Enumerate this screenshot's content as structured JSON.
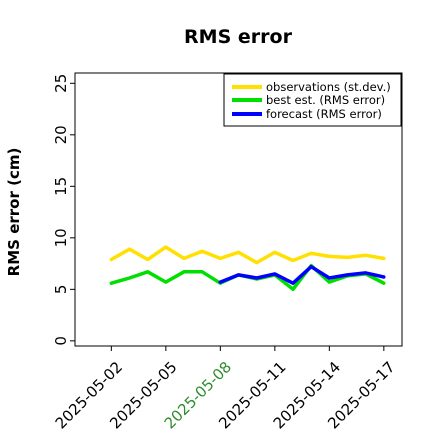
{
  "chart_data": {
    "type": "line",
    "title": "RMS error",
    "ylabel": "RMS error (cm)",
    "xlabel": "",
    "ylim": [
      -0.5,
      26
    ],
    "yticks": [
      0,
      5,
      10,
      15,
      20,
      25
    ],
    "xlim": [
      "2025-04-30",
      "2025-05-18"
    ],
    "xticks": [
      {
        "label": "2025-05-02",
        "x": "2025-05-02",
        "color": "#000000"
      },
      {
        "label": "2025-05-05",
        "x": "2025-05-05",
        "color": "#000000"
      },
      {
        "label": "2025-05-08",
        "x": "2025-05-08",
        "color": "#2e8b2e"
      },
      {
        "label": "2025-05-11",
        "x": "2025-05-11",
        "color": "#000000"
      },
      {
        "label": "2025-05-14",
        "x": "2025-05-14",
        "color": "#000000"
      },
      {
        "label": "2025-05-17",
        "x": "2025-05-17",
        "color": "#000000"
      }
    ],
    "x": [
      "2025-05-02",
      "2025-05-03",
      "2025-05-04",
      "2025-05-05",
      "2025-05-06",
      "2025-05-07",
      "2025-05-08",
      "2025-05-09",
      "2025-05-10",
      "2025-05-11",
      "2025-05-12",
      "2025-05-13",
      "2025-05-14",
      "2025-05-15",
      "2025-05-16",
      "2025-05-17"
    ],
    "series": [
      {
        "name": "observations (st.dev.)",
        "color": "#ffe000",
        "values": [
          7.9,
          8.9,
          7.9,
          9.1,
          8.0,
          8.7,
          8.0,
          8.6,
          7.6,
          8.6,
          7.8,
          8.5,
          8.2,
          8.1,
          8.3,
          8.0
        ]
      },
      {
        "name": "best est. (RMS error)",
        "color": "#00e000",
        "values": [
          5.6,
          6.1,
          6.7,
          5.7,
          6.7,
          6.7,
          5.6,
          6.4,
          6.0,
          6.4,
          5.0,
          7.3,
          5.7,
          6.3,
          6.5,
          5.6
        ]
      },
      {
        "name": "forecast (RMS error)",
        "color": "#0000ff",
        "values": [
          null,
          null,
          null,
          null,
          null,
          null,
          5.7,
          6.4,
          6.1,
          6.5,
          5.6,
          7.2,
          6.1,
          6.4,
          6.6,
          6.2
        ]
      }
    ],
    "legend_position": "top-right",
    "grid": false
  }
}
